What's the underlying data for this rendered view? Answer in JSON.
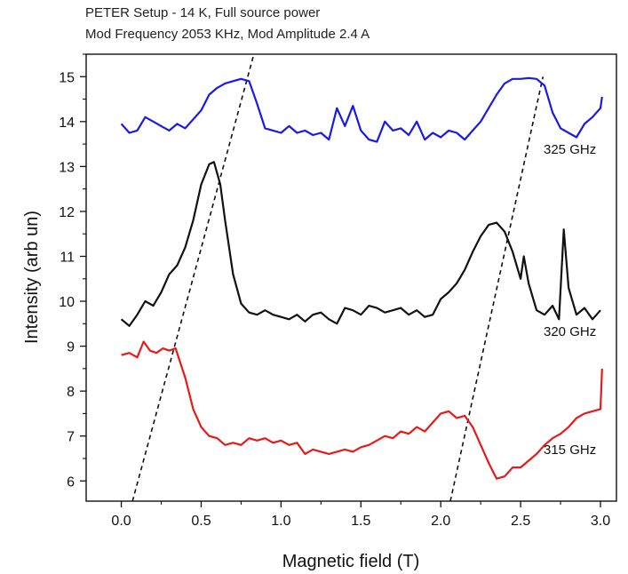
{
  "chart_data": {
    "type": "line",
    "title": "PETER Setup - 14 K, Full source power",
    "subtitle": "Mod Frequency 2053 KHz, Mod Amplitude 2.4 A",
    "xlabel": "Magnetic field (T)",
    "ylabel": "Intensity (arb un)",
    "xlim": [
      -0.22,
      3.1
    ],
    "ylim": [
      5.55,
      15.5
    ],
    "xticks": [
      "0.0",
      "0.5",
      "1.0",
      "1.5",
      "2.0",
      "2.5",
      "3.0"
    ],
    "yticks": [
      "6",
      "7",
      "8",
      "9",
      "10",
      "11",
      "12",
      "13",
      "14",
      "15"
    ],
    "grid": false,
    "series": [
      {
        "name": "325 GHz",
        "color": "#1a1ae6",
        "x": [
          0.0,
          0.05,
          0.1,
          0.15,
          0.2,
          0.25,
          0.3,
          0.35,
          0.4,
          0.45,
          0.5,
          0.55,
          0.6,
          0.65,
          0.7,
          0.75,
          0.8,
          0.85,
          0.9,
          0.95,
          1.0,
          1.05,
          1.1,
          1.15,
          1.2,
          1.25,
          1.3,
          1.35,
          1.4,
          1.45,
          1.5,
          1.55,
          1.6,
          1.65,
          1.7,
          1.75,
          1.8,
          1.85,
          1.9,
          1.95,
          2.0,
          2.05,
          2.1,
          2.15,
          2.2,
          2.25,
          2.3,
          2.35,
          2.4,
          2.45,
          2.5,
          2.55,
          2.6,
          2.65,
          2.7,
          2.75,
          2.8,
          2.85,
          2.9,
          2.95,
          3.0,
          3.01
        ],
        "y": [
          13.95,
          13.75,
          13.8,
          14.1,
          14.0,
          13.9,
          13.8,
          13.95,
          13.85,
          14.05,
          14.25,
          14.6,
          14.75,
          14.85,
          14.9,
          14.95,
          14.9,
          14.4,
          13.85,
          13.8,
          13.75,
          13.9,
          13.75,
          13.8,
          13.7,
          13.75,
          13.6,
          14.3,
          13.9,
          14.35,
          13.8,
          13.6,
          13.55,
          14.0,
          13.8,
          13.85,
          13.7,
          14.0,
          13.6,
          13.75,
          13.65,
          13.8,
          13.75,
          13.6,
          13.8,
          14.0,
          14.3,
          14.6,
          14.85,
          14.95,
          14.95,
          14.97,
          14.95,
          14.8,
          14.2,
          13.85,
          13.75,
          13.65,
          13.95,
          14.1,
          14.3,
          14.55
        ]
      },
      {
        "name": "320 GHz",
        "color": "#111111",
        "x": [
          0.0,
          0.05,
          0.1,
          0.15,
          0.2,
          0.25,
          0.3,
          0.35,
          0.4,
          0.45,
          0.5,
          0.55,
          0.58,
          0.62,
          0.65,
          0.7,
          0.75,
          0.8,
          0.85,
          0.9,
          0.95,
          1.0,
          1.05,
          1.1,
          1.15,
          1.2,
          1.25,
          1.3,
          1.35,
          1.4,
          1.45,
          1.5,
          1.55,
          1.6,
          1.65,
          1.7,
          1.75,
          1.8,
          1.85,
          1.9,
          1.95,
          2.0,
          2.05,
          2.1,
          2.15,
          2.2,
          2.25,
          2.3,
          2.35,
          2.4,
          2.45,
          2.5,
          2.52,
          2.55,
          2.6,
          2.65,
          2.7,
          2.74,
          2.77,
          2.8,
          2.85,
          2.9,
          2.95,
          3.0
        ],
        "y": [
          9.6,
          9.45,
          9.7,
          10.0,
          9.9,
          10.2,
          10.6,
          10.8,
          11.2,
          11.8,
          12.6,
          13.05,
          13.1,
          12.6,
          11.8,
          10.6,
          9.95,
          9.75,
          9.7,
          9.8,
          9.7,
          9.65,
          9.6,
          9.7,
          9.55,
          9.7,
          9.75,
          9.6,
          9.5,
          9.85,
          9.8,
          9.7,
          9.9,
          9.85,
          9.75,
          9.8,
          9.85,
          9.7,
          9.8,
          9.65,
          9.7,
          10.05,
          10.2,
          10.4,
          10.7,
          11.1,
          11.45,
          11.7,
          11.75,
          11.55,
          11.1,
          10.5,
          11.0,
          10.4,
          9.8,
          9.7,
          9.9,
          9.6,
          11.6,
          10.3,
          9.7,
          9.85,
          9.6,
          9.8
        ]
      },
      {
        "name": "315 GHz",
        "color": "#e61a1a",
        "x": [
          0.0,
          0.05,
          0.1,
          0.14,
          0.18,
          0.22,
          0.26,
          0.3,
          0.34,
          0.4,
          0.45,
          0.5,
          0.55,
          0.6,
          0.65,
          0.7,
          0.75,
          0.8,
          0.85,
          0.9,
          0.95,
          1.0,
          1.05,
          1.1,
          1.15,
          1.2,
          1.25,
          1.3,
          1.35,
          1.4,
          1.45,
          1.5,
          1.55,
          1.6,
          1.65,
          1.7,
          1.75,
          1.8,
          1.85,
          1.9,
          1.95,
          2.0,
          2.05,
          2.1,
          2.15,
          2.2,
          2.25,
          2.3,
          2.35,
          2.4,
          2.45,
          2.5,
          2.55,
          2.6,
          2.65,
          2.7,
          2.75,
          2.8,
          2.85,
          2.9,
          2.95,
          3.0,
          3.01
        ],
        "y": [
          8.8,
          8.85,
          8.75,
          9.1,
          8.9,
          8.85,
          8.95,
          8.9,
          8.95,
          8.3,
          7.6,
          7.2,
          7.0,
          6.95,
          6.8,
          6.85,
          6.8,
          6.95,
          6.9,
          6.95,
          6.85,
          6.9,
          6.8,
          6.85,
          6.6,
          6.7,
          6.65,
          6.6,
          6.65,
          6.7,
          6.65,
          6.75,
          6.8,
          6.9,
          7.0,
          6.95,
          7.1,
          7.05,
          7.2,
          7.1,
          7.3,
          7.5,
          7.55,
          7.4,
          7.45,
          7.2,
          6.8,
          6.4,
          6.05,
          6.1,
          6.3,
          6.3,
          6.45,
          6.6,
          6.8,
          6.95,
          7.05,
          7.2,
          7.4,
          7.5,
          7.55,
          7.6,
          8.5
        ]
      }
    ],
    "reference_lines": [
      {
        "style": "dashed",
        "color": "#111111",
        "x": [
          0.07,
          0.83
        ],
        "y": [
          5.55,
          15.5
        ]
      },
      {
        "style": "dashed",
        "color": "#111111",
        "x": [
          2.06,
          2.64
        ],
        "y": [
          5.55,
          15.0
        ]
      }
    ]
  }
}
